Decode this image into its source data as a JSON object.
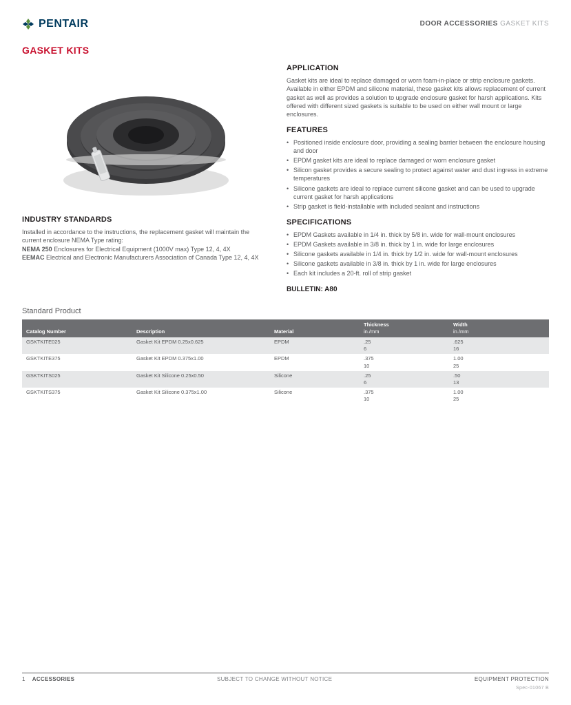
{
  "brand": {
    "name": "PENTAIR",
    "logo_colors": {
      "green": "#5a8f3e",
      "blue": "#003a5d"
    }
  },
  "breadcrumb": {
    "cat": "DOOR ACCESSORIES",
    "sub": "GASKET KITS"
  },
  "title": "GASKET KITS",
  "application": {
    "head": "APPLICATION",
    "text": "Gasket kits  are ideal to replace damaged or worn foam-in-place or strip enclosure gaskets.  Available in either EPDM and silicone material, these gasket kits allows replacement of current gasket as well as provides a solution to upgrade enclosure gasket for harsh applications. Kits offered with different sized gaskets is suitable to be used on either wall mount or large enclosures."
  },
  "features": {
    "head": "FEATURES",
    "items": [
      "Positioned inside enclosure door, providing a sealing barrier between the enclosure housing and door",
      "EPDM gasket kits are ideal to replace damaged or worn enclosure gasket",
      "Silicon gasket provides a secure sealing to protect against water and dust ingress in extreme temperatures",
      "Silicone gaskets are  ideal to replace current silicone gasket and can be used to upgrade current gasket for harsh applications",
      "Strip gasket is field-installable with included sealant and instructions"
    ]
  },
  "industry": {
    "head": "INDUSTRY STANDARDS",
    "intro": "Installed in accordance to the instructions, the replacement gasket will maintain the current enclosure NEMA Type rating:",
    "nema_label": "NEMA 250",
    "nema_text": " Enclosures for Electrical Equipment (1000V max) Type 12, 4, 4X",
    "eemac_label": "EEMAC",
    "eemac_text": " Electrical and Electronic Manufacturers Association of Canada Type 12, 4, 4X"
  },
  "specs": {
    "head": "SPECIFICATIONS",
    "items": [
      "EPDM Gaskets available in 1/4 in. thick by 5/8 in. wide for wall-mount enclosures",
      "EPDM Gaskets available in 3/8 in. thick by 1 in. wide for large enclosures",
      "Silicone gaskets available in 1/4 in. thick by 1/2 in. wide for wall-mount enclosures",
      "Silicone gaskets available in 3/8 in. thick by 1 in. wide for large enclosures",
      "Each kit includes a 20-ft. roll of strip gasket"
    ]
  },
  "bulletin": "BULLETIN: A80",
  "table": {
    "caption": "Standard Product",
    "headers": {
      "c1": "Catalog Number",
      "c2": "Description",
      "c3": "Material",
      "c4_top": "Thickness",
      "c4_sub": "in./mm",
      "c5_top": "Width",
      "c5_sub": "in./mm"
    },
    "rows": [
      {
        "cat": "GSKTKITE025",
        "desc": "Gasket Kit EPDM 0.25x0.625",
        "mat": "EPDM",
        "th_in": ".25",
        "th_mm": "6",
        "w_in": ".625",
        "w_mm": "16",
        "shade": "grey"
      },
      {
        "cat": "GSKTKITE375",
        "desc": "Gasket Kit EPDM 0.375x1.00",
        "mat": "EPDM",
        "th_in": ".375",
        "th_mm": "10",
        "w_in": "1.00",
        "w_mm": "25",
        "shade": "white"
      },
      {
        "cat": "GSKTKITS025",
        "desc": "Gasket Kit Silicone 0.25x0.50",
        "mat": "Silicone",
        "th_in": ".25",
        "th_mm": "6",
        "w_in": ".50",
        "w_mm": "13",
        "shade": "grey"
      },
      {
        "cat": "GSKTKITS375",
        "desc": "Gasket Kit Silicone 0.375x1.00",
        "mat": "Silicone",
        "th_in": ".375",
        "th_mm": "10",
        "w_in": "1.00",
        "w_mm": "25",
        "shade": "white"
      }
    ],
    "col_widths": [
      "160px",
      "200px",
      "130px",
      "130px",
      "auto"
    ],
    "header_bg": "#6d6e71",
    "header_color": "#ffffff",
    "row_grey": "#e6e7e8",
    "row_white": "#ffffff"
  },
  "footer": {
    "page": "1",
    "section": "ACCESSORIES",
    "center": "SUBJECT TO CHANGE WITHOUT NOTICE",
    "right1": "EQUIPMENT PROTECTION",
    "right2": "Spec-01067 B"
  },
  "colors": {
    "title_red": "#c8102e",
    "text": "#58595b",
    "head": "#231f20"
  }
}
